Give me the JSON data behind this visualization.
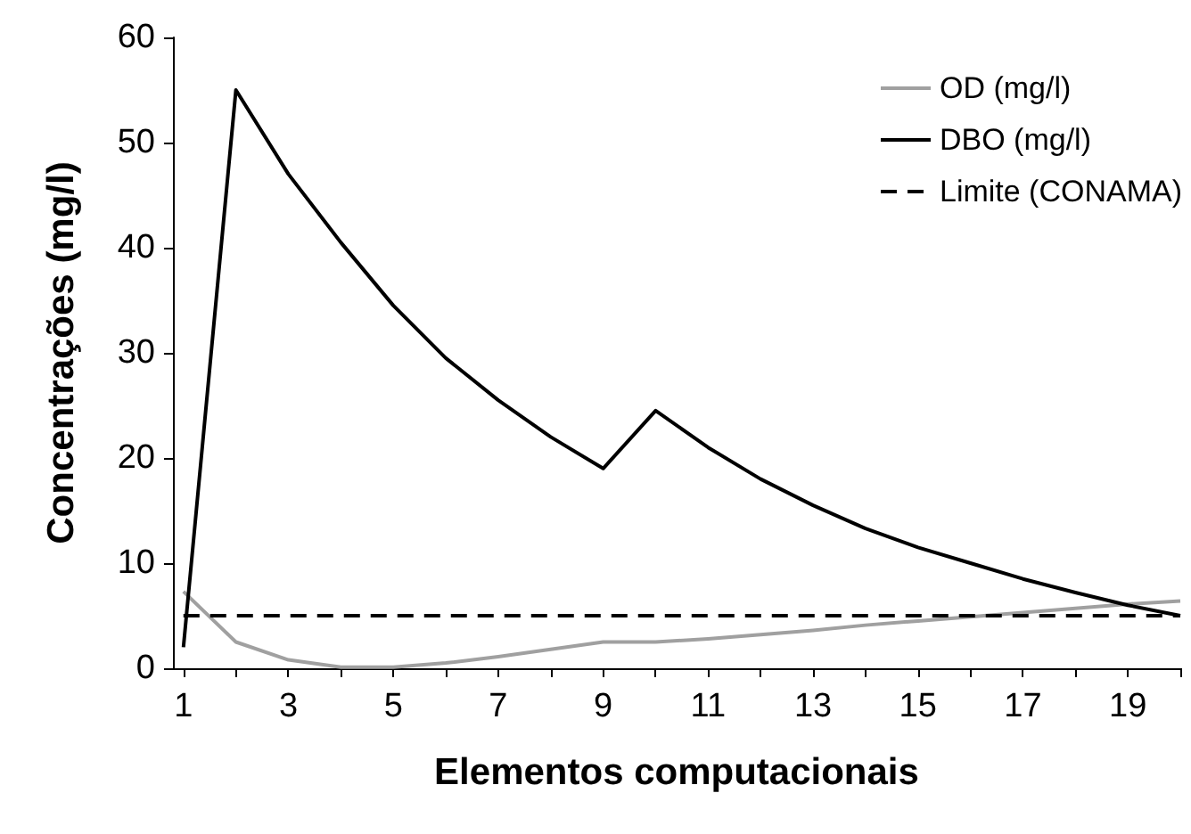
{
  "chart_data": {
    "type": "line",
    "xlabel": "Elementos computacionais",
    "ylabel": "Concentrações (mg/l)",
    "x": [
      1,
      2,
      3,
      4,
      5,
      6,
      7,
      8,
      9,
      10,
      11,
      12,
      13,
      14,
      15,
      16,
      17,
      18,
      19,
      20
    ],
    "series": [
      {
        "name": "OD (mg/l)",
        "color": "#a0a0a0",
        "values": [
          7.3,
          2.5,
          0.8,
          0.1,
          0.1,
          0.5,
          1.1,
          1.8,
          2.5,
          2.5,
          2.8,
          3.2,
          3.6,
          4.1,
          4.5,
          4.9,
          5.3,
          5.7,
          6.1,
          6.4
        ]
      },
      {
        "name": "DBO (mg/l)",
        "color": "#000000",
        "values": [
          2,
          55,
          47,
          40.5,
          34.5,
          29.5,
          25.5,
          22,
          19,
          24.5,
          21,
          18,
          15.5,
          13.3,
          11.5,
          10,
          8.5,
          7.2,
          6,
          5
        ]
      },
      {
        "name": "Limite (CONAMA)",
        "color": "#000000",
        "line_style": "dashed",
        "values": [
          5,
          5,
          5,
          5,
          5,
          5,
          5,
          5,
          5,
          5,
          5,
          5,
          5,
          5,
          5,
          5,
          5,
          5,
          5,
          5
        ]
      }
    ],
    "xlim": [
      0.8,
      20
    ],
    "xticks": [
      1,
      {
        "value": 2,
        "label": null
      },
      3,
      {
        "value": 4,
        "label": null
      },
      5,
      {
        "value": 6,
        "label": null
      },
      7,
      {
        "value": 8,
        "label": null
      },
      9,
      {
        "value": 10,
        "label": null
      },
      11,
      {
        "value": 12,
        "label": null
      },
      13,
      {
        "value": 14,
        "label": null
      },
      15,
      {
        "value": 16,
        "label": null
      },
      17,
      {
        "value": 18,
        "label": null
      },
      19,
      {
        "value": 20,
        "label": null
      }
    ],
    "ylim": [
      0,
      60
    ],
    "yticks": [
      0,
      10,
      20,
      30,
      40,
      50,
      60
    ],
    "grid": false,
    "legend": "top right",
    "marker": "none"
  }
}
